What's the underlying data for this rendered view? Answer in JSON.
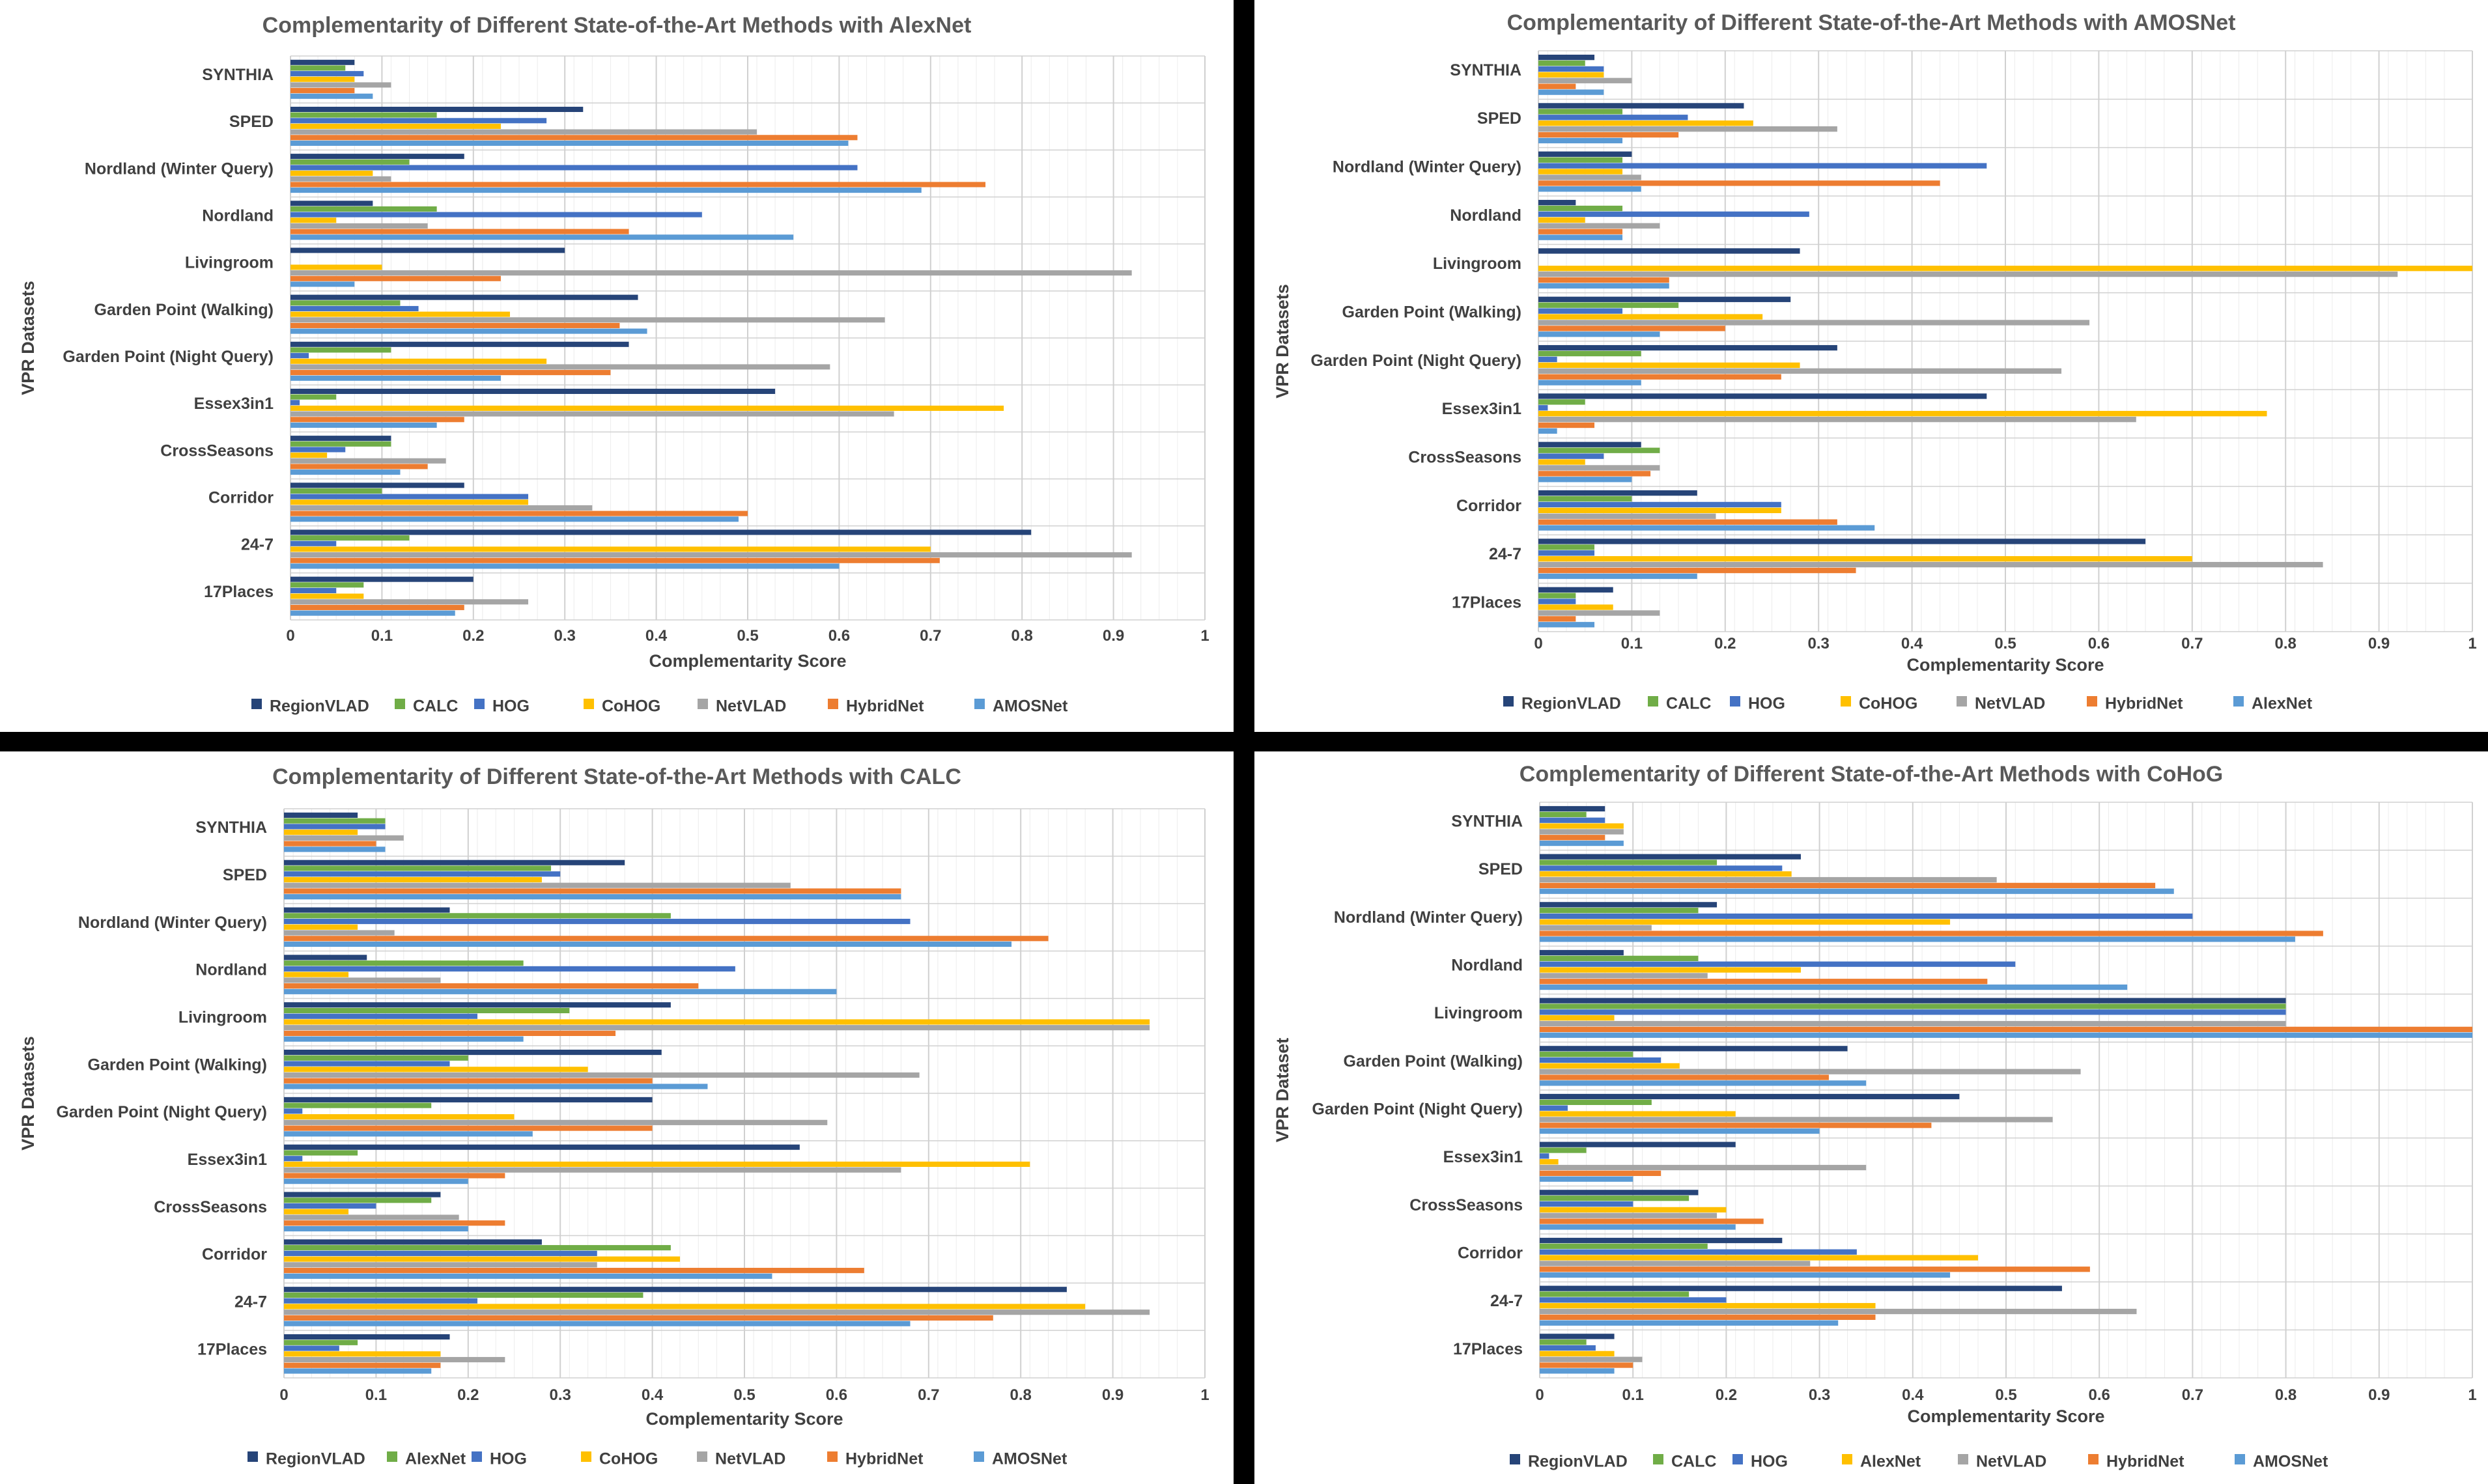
{
  "chart_data": [
    {
      "type": "bar",
      "orientation": "horizontal",
      "title": "Complementarity of Different State-of-the-Art Methods with AlexNet",
      "xlabel": "Complementarity Score",
      "ylabel": "VPR Datasets",
      "xlim": [
        0,
        1
      ],
      "xticks": [
        "0",
        "0.1",
        "0.2",
        "0.3",
        "0.4",
        "0.5",
        "0.6",
        "0.7",
        "0.8",
        "0.9",
        "1"
      ],
      "grid": true,
      "legend_position": "bottom",
      "categories": [
        "SYNTHIA",
        "SPED",
        "Nordland (Winter Query)",
        "Nordland",
        "Livingroom",
        "Garden Point (Walking)",
        "Garden Point (Night Query)",
        "Essex3in1",
        "CrossSeasons",
        "Corridor",
        "24-7",
        "17Places"
      ],
      "series": [
        {
          "name": "RegionVLAD",
          "color": "#264478",
          "values": [
            0.07,
            0.32,
            0.19,
            0.09,
            0.3,
            0.38,
            0.37,
            0.53,
            0.11,
            0.19,
            0.81,
            0.2
          ]
        },
        {
          "name": "CALC",
          "color": "#70AD47",
          "values": [
            0.06,
            0.16,
            0.13,
            0.16,
            0.0,
            0.12,
            0.11,
            0.05,
            0.11,
            0.1,
            0.13,
            0.08
          ]
        },
        {
          "name": "HOG",
          "color": "#4472C4",
          "values": [
            0.08,
            0.28,
            0.62,
            0.45,
            0.0,
            0.14,
            0.02,
            0.01,
            0.06,
            0.26,
            0.05,
            0.05
          ]
        },
        {
          "name": "CoHOG",
          "color": "#FFC000",
          "values": [
            0.07,
            0.23,
            0.09,
            0.05,
            0.1,
            0.24,
            0.28,
            0.78,
            0.04,
            0.26,
            0.7,
            0.08
          ]
        },
        {
          "name": "NetVLAD",
          "color": "#A5A5A5",
          "values": [
            0.11,
            0.51,
            0.11,
            0.15,
            0.92,
            0.65,
            0.59,
            0.66,
            0.17,
            0.33,
            0.92,
            0.26
          ]
        },
        {
          "name": "HybridNet",
          "color": "#ED7D31",
          "values": [
            0.07,
            0.62,
            0.76,
            0.37,
            0.23,
            0.36,
            0.35,
            0.19,
            0.15,
            0.5,
            0.71,
            0.19
          ]
        },
        {
          "name": "AMOSNet",
          "color": "#5B9BD5",
          "values": [
            0.09,
            0.61,
            0.69,
            0.55,
            0.07,
            0.39,
            0.23,
            0.16,
            0.12,
            0.49,
            0.6,
            0.18
          ]
        }
      ]
    },
    {
      "type": "bar",
      "orientation": "horizontal",
      "title": "Complementarity of Different State-of-the-Art Methods with AMOSNet",
      "xlabel": "Complementarity Score",
      "ylabel": "VPR Datasets",
      "xlim": [
        0,
        1
      ],
      "xticks": [
        "0",
        "0.1",
        "0.2",
        "0.3",
        "0.4",
        "0.5",
        "0.6",
        "0.7",
        "0.8",
        "0.9",
        "1"
      ],
      "grid": true,
      "legend_position": "bottom",
      "categories": [
        "SYNTHIA",
        "SPED",
        "Nordland (Winter Query)",
        "Nordland",
        "Livingroom",
        "Garden Point (Walking)",
        "Garden Point (Night Query)",
        "Essex3in1",
        "CrossSeasons",
        "Corridor",
        "24-7",
        "17Places"
      ],
      "series": [
        {
          "name": "RegionVLAD",
          "color": "#264478",
          "values": [
            0.06,
            0.22,
            0.1,
            0.04,
            0.28,
            0.27,
            0.32,
            0.48,
            0.11,
            0.17,
            0.65,
            0.08
          ]
        },
        {
          "name": "CALC",
          "color": "#70AD47",
          "values": [
            0.05,
            0.09,
            0.09,
            0.09,
            0.0,
            0.15,
            0.11,
            0.05,
            0.13,
            0.1,
            0.06,
            0.04
          ]
        },
        {
          "name": "HOG",
          "color": "#4472C4",
          "values": [
            0.07,
            0.16,
            0.48,
            0.29,
            0.0,
            0.09,
            0.02,
            0.01,
            0.07,
            0.26,
            0.06,
            0.04
          ]
        },
        {
          "name": "CoHOG",
          "color": "#FFC000",
          "values": [
            0.07,
            0.23,
            0.09,
            0.05,
            1.0,
            0.24,
            0.28,
            0.78,
            0.05,
            0.26,
            0.7,
            0.08
          ]
        },
        {
          "name": "NetVLAD",
          "color": "#A5A5A5",
          "values": [
            0.1,
            0.32,
            0.11,
            0.13,
            0.92,
            0.59,
            0.56,
            0.64,
            0.13,
            0.19,
            0.84,
            0.13
          ]
        },
        {
          "name": "HybridNet",
          "color": "#ED7D31",
          "values": [
            0.04,
            0.15,
            0.43,
            0.09,
            0.14,
            0.2,
            0.26,
            0.06,
            0.12,
            0.32,
            0.34,
            0.04
          ]
        },
        {
          "name": "AlexNet",
          "color": "#5B9BD5",
          "values": [
            0.07,
            0.09,
            0.11,
            0.09,
            0.14,
            0.13,
            0.11,
            0.02,
            0.1,
            0.36,
            0.17,
            0.06
          ]
        }
      ]
    },
    {
      "type": "bar",
      "orientation": "horizontal",
      "title": "Complementarity of Different State-of-the-Art Methods with CALC",
      "xlabel": "Complementarity Score",
      "ylabel": "VPR Datasets",
      "xlim": [
        0,
        1
      ],
      "xticks": [
        "0",
        "0.1",
        "0.2",
        "0.3",
        "0.4",
        "0.5",
        "0.6",
        "0.7",
        "0.8",
        "0.9",
        "1"
      ],
      "grid": true,
      "legend_position": "bottom",
      "categories": [
        "SYNTHIA",
        "SPED",
        "Nordland (Winter Query)",
        "Nordland",
        "Livingroom",
        "Garden Point (Walking)",
        "Garden Point (Night Query)",
        "Essex3in1",
        "CrossSeasons",
        "Corridor",
        "24-7",
        "17Places"
      ],
      "series": [
        {
          "name": "RegionVLAD",
          "color": "#264478",
          "values": [
            0.08,
            0.37,
            0.18,
            0.09,
            0.42,
            0.41,
            0.4,
            0.56,
            0.17,
            0.28,
            0.85,
            0.18
          ]
        },
        {
          "name": "AlexNet",
          "color": "#70AD47",
          "values": [
            0.11,
            0.29,
            0.42,
            0.26,
            0.31,
            0.2,
            0.16,
            0.08,
            0.16,
            0.42,
            0.39,
            0.08
          ]
        },
        {
          "name": "HOG",
          "color": "#4472C4",
          "values": [
            0.11,
            0.3,
            0.68,
            0.49,
            0.21,
            0.18,
            0.02,
            0.02,
            0.1,
            0.34,
            0.21,
            0.06
          ]
        },
        {
          "name": "CoHOG",
          "color": "#FFC000",
          "values": [
            0.08,
            0.28,
            0.08,
            0.07,
            0.94,
            0.33,
            0.25,
            0.81,
            0.07,
            0.43,
            0.87,
            0.17
          ]
        },
        {
          "name": "NetVLAD",
          "color": "#A5A5A5",
          "values": [
            0.13,
            0.55,
            0.12,
            0.17,
            0.94,
            0.69,
            0.59,
            0.67,
            0.19,
            0.34,
            0.94,
            0.24
          ]
        },
        {
          "name": "HybridNet",
          "color": "#ED7D31",
          "values": [
            0.1,
            0.67,
            0.83,
            0.45,
            0.36,
            0.4,
            0.4,
            0.24,
            0.24,
            0.63,
            0.77,
            0.17
          ]
        },
        {
          "name": "AMOSNet",
          "color": "#5B9BD5",
          "values": [
            0.11,
            0.67,
            0.79,
            0.6,
            0.26,
            0.46,
            0.27,
            0.2,
            0.2,
            0.53,
            0.68,
            0.16
          ]
        }
      ]
    },
    {
      "type": "bar",
      "orientation": "horizontal",
      "title": "Complementarity of Different State-of-the-Art Methods with CoHoG",
      "xlabel": "Complementarity Score",
      "ylabel": "VPR Dataset",
      "xlim": [
        0,
        1
      ],
      "xticks": [
        "0",
        "0.1",
        "0.2",
        "0.3",
        "0.4",
        "0.5",
        "0.6",
        "0.7",
        "0.8",
        "0.9",
        "1"
      ],
      "grid": true,
      "legend_position": "bottom",
      "categories": [
        "SYNTHIA",
        "SPED",
        "Nordland (Winter Query)",
        "Nordland",
        "Livingroom",
        "Garden Point (Walking)",
        "Garden Point (Night Query)",
        "Essex3in1",
        "CrossSeasons",
        "Corridor",
        "24-7",
        "17Places"
      ],
      "series": [
        {
          "name": "RegionVLAD",
          "color": "#264478",
          "values": [
            0.07,
            0.28,
            0.19,
            0.09,
            0.8,
            0.33,
            0.45,
            0.21,
            0.17,
            0.26,
            0.56,
            0.08
          ]
        },
        {
          "name": "CALC",
          "color": "#70AD47",
          "values": [
            0.05,
            0.19,
            0.17,
            0.17,
            0.8,
            0.1,
            0.12,
            0.05,
            0.16,
            0.18,
            0.16,
            0.05
          ]
        },
        {
          "name": "HOG",
          "color": "#4472C4",
          "values": [
            0.07,
            0.26,
            0.7,
            0.51,
            0.8,
            0.13,
            0.03,
            0.01,
            0.1,
            0.34,
            0.2,
            0.06
          ]
        },
        {
          "name": "AlexNet",
          "color": "#FFC000",
          "values": [
            0.09,
            0.27,
            0.44,
            0.28,
            0.08,
            0.15,
            0.21,
            0.02,
            0.2,
            0.47,
            0.36,
            0.08
          ]
        },
        {
          "name": "NetVLAD",
          "color": "#A5A5A5",
          "values": [
            0.09,
            0.49,
            0.12,
            0.18,
            0.8,
            0.58,
            0.55,
            0.35,
            0.19,
            0.29,
            0.64,
            0.11
          ]
        },
        {
          "name": "HybridNet",
          "color": "#ED7D31",
          "values": [
            0.07,
            0.66,
            0.84,
            0.48,
            1.0,
            0.31,
            0.42,
            0.13,
            0.24,
            0.59,
            0.36,
            0.1
          ]
        },
        {
          "name": "AMOSNet",
          "color": "#5B9BD5",
          "values": [
            0.09,
            0.68,
            0.81,
            0.63,
            1.0,
            0.35,
            0.3,
            0.1,
            0.21,
            0.44,
            0.32,
            0.08
          ]
        }
      ]
    }
  ]
}
